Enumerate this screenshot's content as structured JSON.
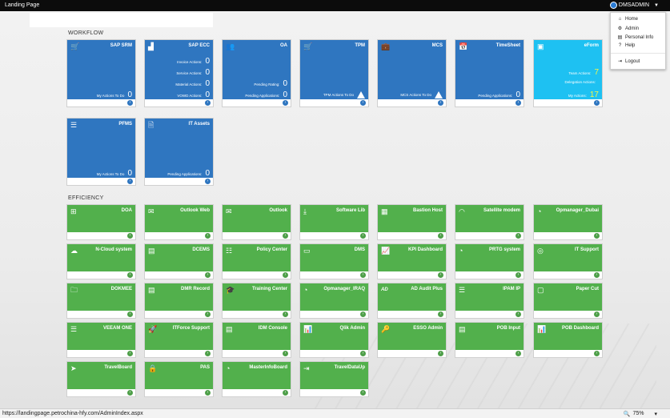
{
  "window": {
    "title": "Landing Page"
  },
  "user": {
    "name": "DMSADMIN"
  },
  "user_menu": [
    {
      "label": "Home",
      "icon": "home-icon",
      "glyph": "⌂"
    },
    {
      "label": "Admin",
      "icon": "gear-icon",
      "glyph": "⚙"
    },
    {
      "label": "Personal Info",
      "icon": "id-card-icon",
      "glyph": "▤"
    },
    {
      "label": "Help",
      "icon": "help-icon",
      "glyph": "?"
    },
    {
      "label": "Logout",
      "icon": "logout-icon",
      "glyph": "⇥"
    }
  ],
  "sections": {
    "workflow": "WORKFLOW",
    "efficiency": "EFFICIENCY"
  },
  "workflow_tiles": [
    {
      "title": "SAP SRM",
      "icon": "cart-icon",
      "glyph": "🛒",
      "color": "blue",
      "rows": [
        {
          "label": "My Actions To Do",
          "value": "0"
        }
      ]
    },
    {
      "title": "SAP ECC",
      "icon": "factory-icon",
      "glyph": "▟",
      "color": "blue",
      "rows": [
        {
          "label": "Invoice Actions:",
          "value": "0"
        },
        {
          "label": "Service Actions:",
          "value": "0"
        },
        {
          "label": "Material Actions:",
          "value": "0"
        },
        {
          "label": "VOWD Actions:",
          "value": "0"
        }
      ]
    },
    {
      "title": "OA",
      "icon": "users-icon",
      "glyph": "👥",
      "color": "blue",
      "rows": [
        {
          "label": "Pending Rating:",
          "value": "0"
        },
        {
          "label": "Pending Applications:",
          "value": "0"
        }
      ]
    },
    {
      "title": "TPM",
      "icon": "cart-icon",
      "glyph": "🛒",
      "color": "blue",
      "rows": [
        {
          "label": "TPM Actions To Do",
          "value": "!"
        }
      ]
    },
    {
      "title": "MCS",
      "icon": "briefcase-icon",
      "glyph": "💼",
      "color": "blue",
      "rows": [
        {
          "label": "MCS Actions To Do",
          "value": "!"
        }
      ]
    },
    {
      "title": "TimeSheet",
      "icon": "calendar-icon",
      "glyph": "📅",
      "color": "blue",
      "rows": [
        {
          "label": "Pending Applications:",
          "value": "0"
        }
      ]
    },
    {
      "title": "eForm",
      "icon": "form-icon",
      "glyph": "▣",
      "color": "cyan",
      "rows": [
        {
          "label": "Team Actions:",
          "value": "7"
        },
        {
          "label": "Delegation Actions:",
          "value": ""
        },
        {
          "label": "My Actions:",
          "value": "17"
        }
      ]
    },
    {
      "title": "PFMS",
      "icon": "server-icon",
      "glyph": "☰",
      "color": "blue",
      "rows": [
        {
          "label": "My Actions To Do",
          "value": "0"
        }
      ]
    },
    {
      "title": "IT Assets",
      "icon": "document-icon",
      "glyph": "🗎",
      "color": "blue",
      "rows": [
        {
          "label": "Pending Applications:",
          "value": "0"
        }
      ]
    }
  ],
  "efficiency_tiles": [
    {
      "title": "DOA",
      "icon": "sitemap-icon",
      "glyph": "⊞"
    },
    {
      "title": "Outlook Web",
      "icon": "envelope-outline-icon",
      "glyph": "✉"
    },
    {
      "title": "Outlook",
      "icon": "envelope-icon",
      "glyph": "✉"
    },
    {
      "title": "Software Lib",
      "icon": "download-icon",
      "glyph": "⤓"
    },
    {
      "title": "Bastion Host",
      "icon": "network-icon",
      "glyph": "▦"
    },
    {
      "title": "Satellite modem",
      "icon": "signal-icon",
      "glyph": "◠"
    },
    {
      "title": "Opmanager_Dubai",
      "icon": "dashboard-icon",
      "glyph": "◔"
    },
    {
      "title": "N-Cloud system",
      "icon": "cloud-icon",
      "glyph": "☁"
    },
    {
      "title": "DCEMS",
      "icon": "id-card-icon",
      "glyph": "▤"
    },
    {
      "title": "Policy Center",
      "icon": "sliders-icon",
      "glyph": "☷"
    },
    {
      "title": "DMS",
      "icon": "window-icon",
      "glyph": "▭"
    },
    {
      "title": "KPI Dashboard",
      "icon": "line-chart-icon",
      "glyph": "📈"
    },
    {
      "title": "PRTG system",
      "icon": "dashboard-icon",
      "glyph": "◔"
    },
    {
      "title": "IT Support",
      "icon": "lifebuoy-icon",
      "glyph": "◎"
    },
    {
      "title": "DOKMEE",
      "icon": "folder-icon",
      "glyph": "🗀"
    },
    {
      "title": "DMR Record",
      "icon": "id-card-icon",
      "glyph": "▤"
    },
    {
      "title": "Training Center",
      "icon": "graduation-cap-icon",
      "glyph": "🎓"
    },
    {
      "title": "Opmanager_IRAQ",
      "icon": "dashboard-icon",
      "glyph": "◔"
    },
    {
      "title": "AD Audit Plus",
      "icon": "ad-logo-icon",
      "glyph": "AD"
    },
    {
      "title": "IPAM IP",
      "icon": "server-icon",
      "glyph": "☰"
    },
    {
      "title": "Paper Cut",
      "icon": "note-icon",
      "glyph": "▢"
    },
    {
      "title": "VEEAM ONE",
      "icon": "server-icon",
      "glyph": "☰"
    },
    {
      "title": "ITForce Support",
      "icon": "rocket-icon",
      "glyph": "🚀"
    },
    {
      "title": "IDM Console",
      "icon": "contact-card-icon",
      "glyph": "▤"
    },
    {
      "title": "Qlik Admin",
      "icon": "bar-chart-icon",
      "glyph": "📊"
    },
    {
      "title": "ESSO Admin",
      "icon": "key-icon",
      "glyph": "🔑"
    },
    {
      "title": "POB Input",
      "icon": "id-card-icon",
      "glyph": "▤"
    },
    {
      "title": "POB Dashboard",
      "icon": "bar-chart-icon",
      "glyph": "📊"
    },
    {
      "title": "TravelBoard",
      "icon": "paper-plane-icon",
      "glyph": "➤"
    },
    {
      "title": "PAS",
      "icon": "lock-icon",
      "glyph": "🔒"
    },
    {
      "title": "MasterInfoBoard",
      "icon": "dashboard-icon",
      "glyph": "◔"
    },
    {
      "title": "TravelDataUp",
      "icon": "sign-in-icon",
      "glyph": "⇥"
    }
  ],
  "statusbar": {
    "url": "https://landingpage.petrochina-hfy.com/AdminIndex.aspx",
    "zoom": "75%"
  }
}
